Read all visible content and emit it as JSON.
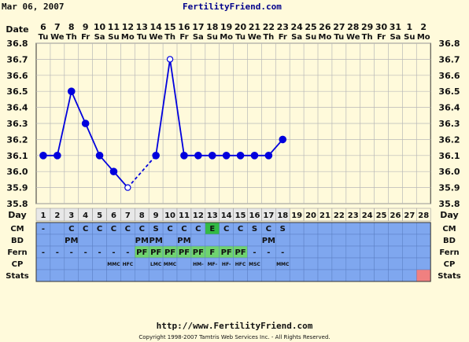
{
  "header": {
    "date": "Mar 06, 2007",
    "site": "FertilityFriend.com"
  },
  "footer": {
    "url": "http://www.FertilityFriend.com",
    "copyright": "Copyright 1998-2007 Tamtris Web Services Inc. - All Rights Reserved."
  },
  "colors": {
    "background": "#fffadb",
    "line": "#0000dd",
    "row_blue": "#7fa7ef",
    "pf_green": "#6fd36f",
    "e_green": "#33bb44",
    "stats_pink": "#f08080",
    "day_cell": "#e8e8e8"
  },
  "row_labels": {
    "date": "Date",
    "day": "Day",
    "cm": "CM",
    "bd": "BD",
    "fern": "Fern",
    "cp": "CP",
    "stats": "Stats"
  },
  "chart_data": {
    "type": "line",
    "ylim": [
      35.8,
      36.8
    ],
    "yticks": [
      "35.8",
      "35.9",
      "36.0",
      "36.1",
      "36.2",
      "36.3",
      "36.4",
      "36.5",
      "36.6",
      "36.7",
      "36.8"
    ],
    "dates": [
      "6",
      "7",
      "8",
      "9",
      "10",
      "11",
      "12",
      "13",
      "14",
      "15",
      "16",
      "17",
      "18",
      "19",
      "20",
      "21",
      "22",
      "23",
      "24",
      "25",
      "26",
      "27",
      "28",
      "29",
      "30",
      "31",
      "1",
      "2"
    ],
    "weekdays": [
      "Tu",
      "We",
      "Th",
      "Fr",
      "Sa",
      "Su",
      "Mo",
      "Tu",
      "We",
      "Th",
      "Fr",
      "Sa",
      "Su",
      "Mo",
      "Tu",
      "We",
      "Th",
      "Fr",
      "Sa",
      "Su",
      "Mo",
      "Tu",
      "We",
      "Th",
      "Fr",
      "Sa",
      "Su",
      "Mo"
    ],
    "days": [
      "1",
      "2",
      "3",
      "4",
      "5",
      "6",
      "7",
      "8",
      "9",
      "10",
      "11",
      "12",
      "13",
      "14",
      "15",
      "16",
      "17",
      "18",
      "19",
      "20",
      "21",
      "22",
      "23",
      "24",
      "25",
      "26",
      "27",
      "28"
    ],
    "temperatures": [
      36.1,
      36.1,
      36.5,
      36.3,
      36.1,
      36.0,
      35.9,
      null,
      36.1,
      36.7,
      36.1,
      36.1,
      36.1,
      36.1,
      36.1,
      36.1,
      36.1,
      36.2,
      null,
      null,
      null,
      null,
      null,
      null,
      null,
      null,
      null,
      null
    ],
    "open_points": [
      7,
      10
    ],
    "dashed_segments": [
      [
        7,
        9
      ]
    ],
    "cm": [
      "-",
      "",
      "C",
      "C",
      "C",
      "C",
      "C",
      "C",
      "S",
      "C",
      "C",
      "C",
      "E",
      "C",
      "C",
      "S",
      "C",
      "S",
      "",
      "",
      "",
      "",
      "",
      "",
      "",
      "",
      "",
      ""
    ],
    "bd": [
      "",
      "",
      "PM",
      "",
      "",
      "",
      "",
      "PM",
      "PM",
      "",
      "PM",
      "",
      "",
      "",
      "",
      "",
      "PM",
      "",
      "",
      "",
      "",
      "",
      "",
      "",
      "",
      "",
      "",
      ""
    ],
    "fern": [
      "-",
      "-",
      "-",
      "-",
      "-",
      "-",
      "-",
      "PF",
      "PF",
      "PF",
      "PF",
      "PF",
      "F",
      "PF",
      "PF",
      "-",
      "-",
      "-",
      "",
      "",
      "",
      "",
      "",
      "",
      "",
      "",
      "",
      ""
    ],
    "cp": [
      "",
      "",
      "",
      "",
      "",
      "MMC",
      "HFC",
      "",
      "LMC",
      "MMC",
      "",
      "HM-",
      "MF-",
      "HF-",
      "HFC",
      "MSC",
      "",
      "MMC",
      "",
      "",
      "",
      "",
      "",
      "",
      "",
      "",
      "",
      ""
    ]
  }
}
